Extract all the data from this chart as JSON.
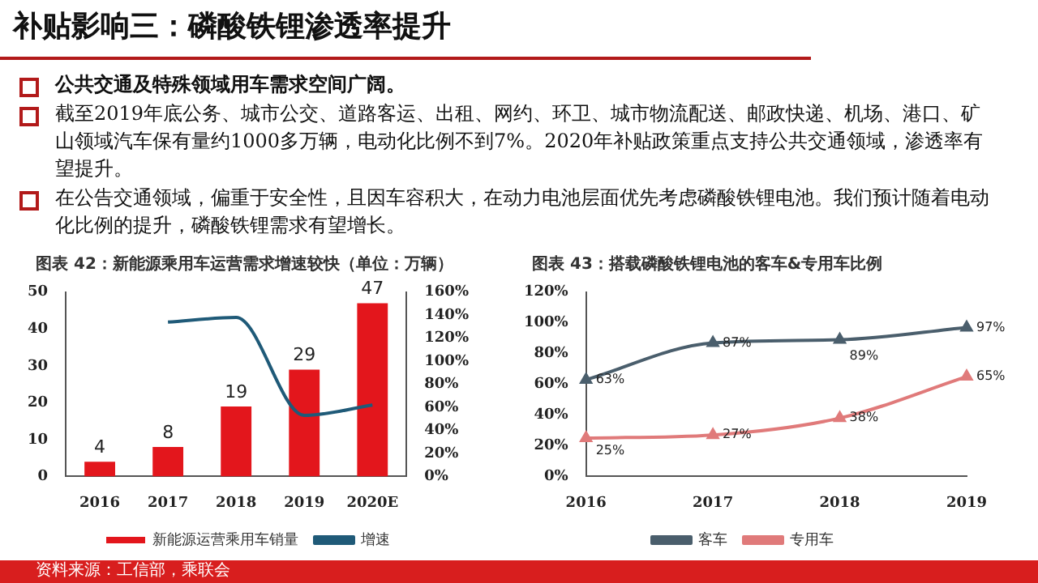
{
  "chart_data": [
    {
      "type": "other",
      "title": "补贴影响三：磷酸铁锂渗透率提升",
      "annotations": [
        "公共交通及特殊领域用车需求空间广阔。",
        "截至2019年底公务、城市公交、道路客运、出租、网约、环卫、城市物流配送、邮政快递、机场、港口、矿山领域汽车保有量约1000多万辆，电动化比例不到7%。2020年补贴政策重点支持公共交通领域，渗透率有望提升。",
        "在公告交通领域，偏重于安全性，且因车容积大，在动力电池层面优先考虑磷酸铁锂电池。我们预计随着电动化比例的提升，磷酸铁锂需求有望增长。"
      ]
    },
    {
      "type": "bar",
      "title": "图表 42：新能源乘用车运营需求增速较快（单位：万辆）",
      "categories": [
        "2016",
        "2017",
        "2018",
        "2019",
        "2020E"
      ],
      "series": [
        {
          "name": "新能源运营乘用车销量",
          "type": "bar",
          "color": "#e3161c",
          "values": [
            4,
            8,
            19,
            29,
            47
          ],
          "value_labels": [
            "4",
            "8",
            "19",
            "29",
            "47"
          ]
        },
        {
          "name": "增速",
          "type": "line",
          "axis": "y2",
          "color": "#1f5a78",
          "values": [
            null,
            134,
            138,
            53,
            62
          ]
        }
      ],
      "ylim": [
        0,
        50
      ],
      "yticks": [
        0,
        10,
        20,
        30,
        40,
        50
      ],
      "y2lim": [
        0,
        160
      ],
      "y2ticks": [
        {
          "value": 0,
          "label": "0%"
        },
        {
          "value": 20,
          "label": "20%"
        },
        {
          "value": 40,
          "label": "40%"
        },
        {
          "value": 60,
          "label": "60%"
        },
        {
          "value": 80,
          "label": "80%"
        },
        {
          "value": 100,
          "label": "100%"
        },
        {
          "value": 120,
          "label": "120%"
        },
        {
          "value": 140,
          "label": "140%"
        },
        {
          "value": 160,
          "label": "160%"
        }
      ],
      "grid": false,
      "legend": "bottom",
      "annotations": [
        "资料来源：工信部，乘联会"
      ]
    },
    {
      "type": "line",
      "title": "图表 43：搭载磷酸铁锂电池的客车&专用车比例",
      "categories": [
        "2016",
        "2017",
        "2018",
        "2019"
      ],
      "series": [
        {
          "name": "客车",
          "color": "#4a5e6c",
          "values": [
            63,
            87,
            89,
            97
          ],
          "value_labels": [
            "63%",
            "87%",
            "89%",
            "97%"
          ]
        },
        {
          "name": "专用车",
          "color": "#e07a7a",
          "values": [
            25,
            27,
            38,
            65
          ],
          "value_labels": [
            "25%",
            "27%",
            "38%",
            "65%"
          ]
        }
      ],
      "ylim": [
        0,
        120
      ],
      "yticks": [
        {
          "value": 0,
          "label": "0%"
        },
        {
          "value": 20,
          "label": "20%"
        },
        {
          "value": 40,
          "label": "40%"
        },
        {
          "value": 60,
          "label": "60%"
        },
        {
          "value": 80,
          "label": "80%"
        },
        {
          "value": 100,
          "label": "100%"
        },
        {
          "value": 120,
          "label": "120%"
        }
      ],
      "grid": false,
      "legend": "bottom",
      "marker": "triangle"
    }
  ]
}
